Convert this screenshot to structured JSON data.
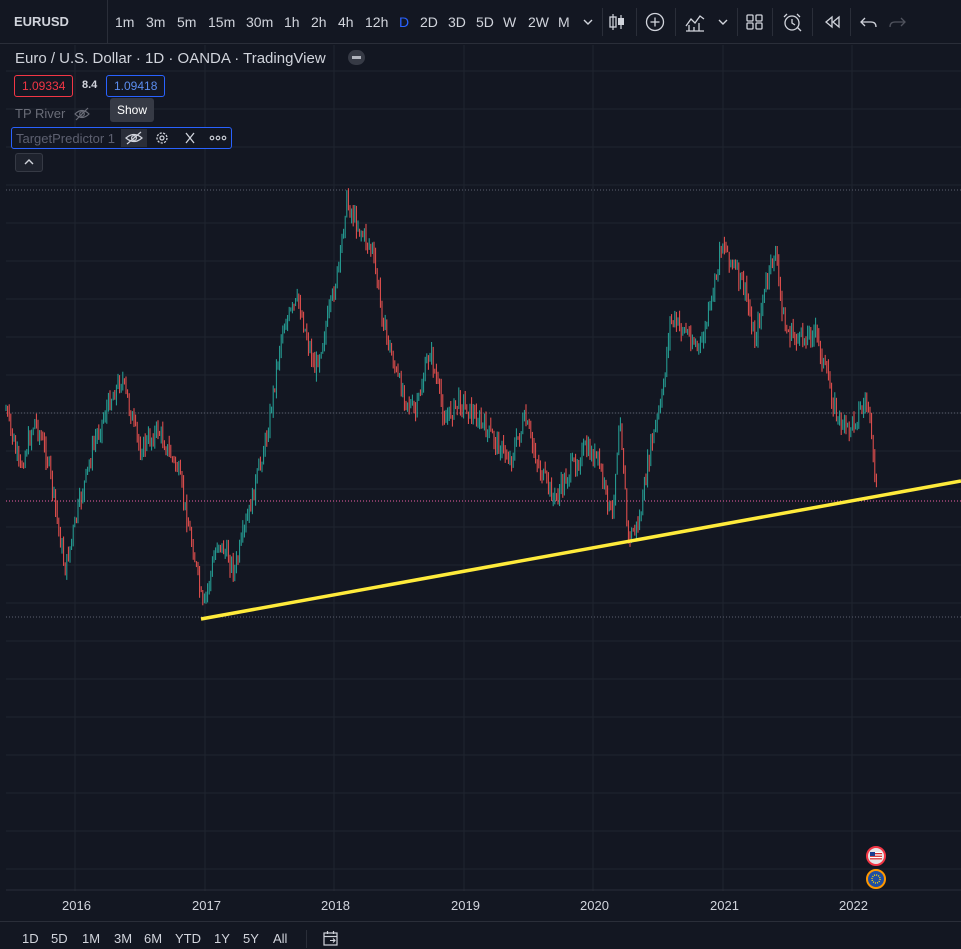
{
  "toolbar": {
    "symbol": "EURUSD",
    "intervals": [
      "1m",
      "3m",
      "5m",
      "15m",
      "30m",
      "1h",
      "2h",
      "4h",
      "12h",
      "D",
      "2D",
      "3D",
      "5D",
      "W",
      "2W",
      "M"
    ],
    "active_interval": "D",
    "icons": [
      "chevron-down-icon",
      "candles-icon",
      "add-circle-icon",
      "indicators-icon",
      "chevron-down-icon",
      "layout-grid-icon",
      "alert-clock-icon",
      "replay-icon",
      "undo-icon",
      "redo-icon"
    ]
  },
  "legend": {
    "title": "Euro / U.S. Dollar · 1D · OANDA · TradingView",
    "sell_price": "1.09334",
    "spread": "8.4",
    "buy_price": "1.09418",
    "tp_river": "TP River",
    "tooltip": "Show",
    "indicator_name": "TargetPredictor 1"
  },
  "time_axis": {
    "labels": [
      "2016",
      "2017",
      "2018",
      "2019",
      "2020",
      "2021",
      "2022"
    ]
  },
  "range_bar": {
    "ranges": [
      "1D",
      "5D",
      "1M",
      "3M",
      "6M",
      "YTD",
      "1Y",
      "5Y",
      "All"
    ]
  },
  "colors": {
    "background": "#131722",
    "up_candle": "#26a69a",
    "down_candle": "#ef5350",
    "trendline": "#ffeb3b",
    "accent": "#2962ff",
    "grid": "#1f2430",
    "price_line": "#ef5fa7"
  },
  "events": [
    "us-flag-icon",
    "eu-flag-icon"
  ]
}
